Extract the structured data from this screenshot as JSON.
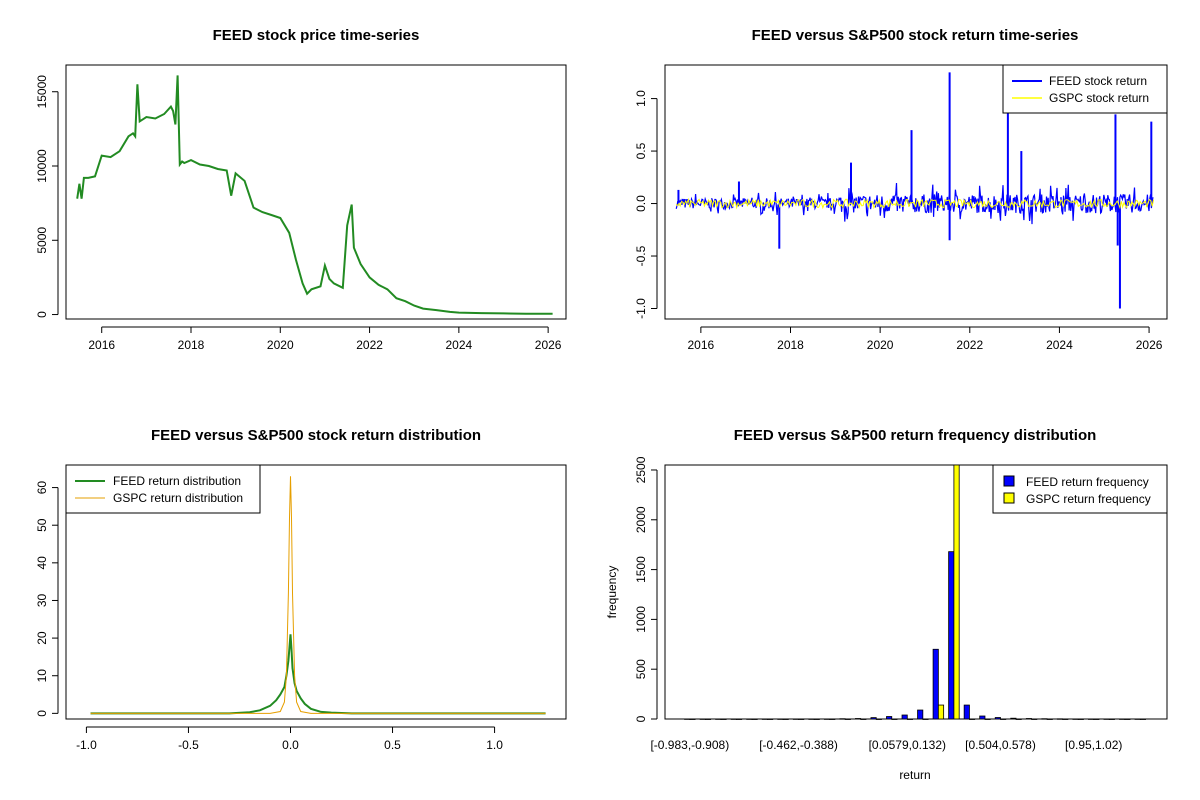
{
  "chart_data": [
    {
      "type": "line",
      "title": "FEED stock price time-series",
      "xlabel": "",
      "ylabel": "",
      "xlim": [
        2015.2,
        2026.4
      ],
      "ylim": [
        -300,
        16800
      ],
      "x_ticks": [
        "2016",
        "2018",
        "2020",
        "2022",
        "2024",
        "2026"
      ],
      "y_ticks": [
        "0",
        "5000",
        "10000",
        "15000"
      ],
      "colors": {
        "price": "#228B22"
      },
      "series": [
        {
          "x": [
            2015.45,
            2015.5,
            2015.55,
            2015.6,
            2015.7,
            2015.85,
            2016.0,
            2016.2,
            2016.4,
            2016.6,
            2016.7,
            2016.75,
            2016.8,
            2016.85,
            2017.0,
            2017.2,
            2017.4,
            2017.55,
            2017.6,
            2017.65,
            2017.7,
            2017.75,
            2017.8,
            2017.85,
            2018.0,
            2018.2,
            2018.4,
            2018.6,
            2018.8,
            2018.9,
            2019.0,
            2019.2,
            2019.4,
            2019.6,
            2019.8,
            2020.0,
            2020.2,
            2020.35,
            2020.5,
            2020.6,
            2020.7,
            2020.9,
            2021.0,
            2021.1,
            2021.2,
            2021.4,
            2021.5,
            2021.6,
            2021.65,
            2021.8,
            2022.0,
            2022.2,
            2022.4,
            2022.6,
            2022.8,
            2023.0,
            2023.2,
            2023.5,
            2023.8,
            2024.0,
            2024.5,
            2025.0,
            2025.5,
            2026.1
          ],
          "y": [
            7800,
            8800,
            7800,
            9200,
            9200,
            9300,
            10700,
            10600,
            11000,
            12000,
            12200,
            12000,
            15500,
            13000,
            13300,
            13200,
            13500,
            14000,
            13700,
            12800,
            16100,
            10100,
            10300,
            10200,
            10400,
            10100,
            10000,
            9800,
            9700,
            8000,
            9500,
            9000,
            7200,
            6900,
            6700,
            6500,
            5500,
            3700,
            2100,
            1400,
            1700,
            1900,
            3300,
            2400,
            2100,
            1800,
            6000,
            7400,
            4500,
            3400,
            2500,
            2000,
            1700,
            1100,
            900,
            600,
            400,
            300,
            180,
            130,
            100,
            80,
            60,
            50
          ]
        }
      ]
    },
    {
      "type": "line",
      "title": "FEED versus S&P500 stock return time-series",
      "xlabel": "",
      "ylabel": "",
      "xlim": [
        2015.2,
        2026.4
      ],
      "ylim": [
        -1.1,
        1.32
      ],
      "x_ticks": [
        "2016",
        "2018",
        "2020",
        "2022",
        "2024",
        "2026"
      ],
      "y_ticks": [
        "-1.0",
        "-0.5",
        "0.0",
        "0.5",
        "1.0"
      ],
      "legend": {
        "position": "top-right",
        "entries": [
          "FEED stock return",
          "GSPC stock return"
        ]
      },
      "colors": {
        "FEED": "#0000FF",
        "GSPC": "#FFFF00"
      },
      "series": [
        {
          "name": "FEED stock return",
          "spikes_x": [
            2015.5,
            2016.85,
            2017.75,
            2019.35,
            2020.7,
            2021.55,
            2021.55,
            2022.85,
            2023.15,
            2025.25,
            2025.3,
            2025.35,
            2026.05
          ],
          "spikes_y": [
            0.13,
            0.21,
            -0.43,
            0.39,
            0.7,
            1.25,
            -0.35,
            0.92,
            0.5,
            0.85,
            -0.4,
            -1.0,
            0.78
          ]
        },
        {
          "name": "GSPC stock return",
          "range": [
            -0.04,
            0.04
          ]
        }
      ]
    },
    {
      "type": "line",
      "title": "FEED versus S&P500 stock return distribution",
      "xlabel": "",
      "ylabel": "",
      "xlim": [
        -1.1,
        1.35
      ],
      "ylim": [
        -1.5,
        66
      ],
      "x_ticks": [
        "-1.0",
        "-0.5",
        "0.0",
        "0.5",
        "1.0"
      ],
      "y_ticks": [
        "0",
        "10",
        "20",
        "30",
        "40",
        "50",
        "60"
      ],
      "legend": {
        "position": "top-left",
        "entries": [
          "FEED return distribution",
          "GSPC return distribution"
        ]
      },
      "colors": {
        "FEED": "#228B22",
        "GSPC": "#E69F00"
      },
      "series": [
        {
          "name": "FEED return distribution",
          "x": [
            -0.98,
            -0.3,
            -0.2,
            -0.15,
            -0.1,
            -0.07,
            -0.05,
            -0.03,
            -0.02,
            -0.01,
            0.0,
            0.005,
            0.01,
            0.02,
            0.03,
            0.05,
            0.07,
            0.1,
            0.15,
            0.2,
            0.3,
            1.25
          ],
          "y": [
            0,
            0,
            0.3,
            0.8,
            2,
            3.5,
            5,
            7,
            10,
            14,
            21,
            17,
            12,
            8,
            6,
            4,
            2.5,
            1.2,
            0.4,
            0.2,
            0,
            0
          ]
        },
        {
          "name": "GSPC return distribution",
          "x": [
            -0.98,
            -0.1,
            -0.05,
            -0.03,
            -0.02,
            -0.01,
            -0.005,
            0.0,
            0.005,
            0.01,
            0.02,
            0.03,
            0.05,
            0.1,
            1.25
          ],
          "y": [
            0,
            0,
            0.5,
            3,
            10,
            32,
            52,
            63,
            52,
            32,
            10,
            3,
            0.5,
            0,
            0
          ]
        }
      ]
    },
    {
      "type": "bar",
      "title": "FEED versus S&P500 return frequency distribution",
      "xlabel": "return",
      "ylabel": "frequency",
      "ylim": [
        0,
        2550
      ],
      "y_ticks": [
        "0",
        "500",
        "1000",
        "1500",
        "2000",
        "2500"
      ],
      "x_tick_labels": [
        "[-0.983,-0.908)",
        "[-0.462,-0.388)",
        "[0.0579,0.132)",
        "[0.504,0.578)",
        "[0.95,1.02)"
      ],
      "x_tick_groups": [
        0,
        7,
        14,
        20,
        26
      ],
      "legend": {
        "position": "top-right",
        "entries": [
          "FEED return frequency",
          "GSPC return frequency"
        ]
      },
      "colors": {
        "FEED": "#0000FF",
        "GSPC": "#FFFF00"
      },
      "group_count": 30,
      "series": [
        {
          "name": "FEED return frequency",
          "values": [
            1,
            1,
            1,
            1,
            1,
            1,
            1,
            1,
            1,
            1,
            3,
            5,
            14,
            25,
            40,
            90,
            700,
            1680,
            140,
            30,
            15,
            8,
            5,
            3,
            2,
            1,
            1,
            1,
            1,
            1
          ]
        },
        {
          "name": "GSPC return frequency",
          "values": [
            0,
            0,
            0,
            0,
            0,
            0,
            0,
            0,
            0,
            0,
            0,
            0,
            0,
            0,
            0,
            0,
            140,
            2600,
            0,
            0,
            0,
            0,
            0,
            0,
            0,
            0,
            0,
            0,
            0,
            0
          ]
        }
      ]
    }
  ]
}
